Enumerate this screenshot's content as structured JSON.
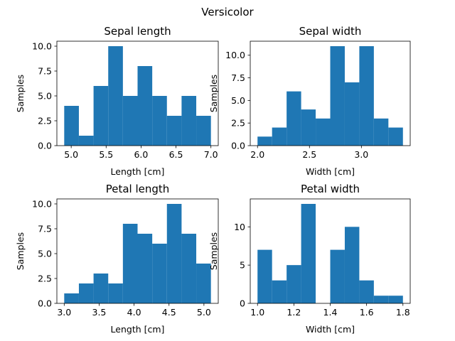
{
  "figure": {
    "suptitle": "Versicolor"
  },
  "colors": {
    "bar": "#1f77b4",
    "axes": "#000000",
    "background": "#ffffff"
  },
  "chart_data": [
    {
      "type": "bar",
      "title": "Sepal length",
      "xlabel": "Length [cm]",
      "ylabel": "Samples",
      "bin_edges": [
        4.9,
        5.11,
        5.32,
        5.53,
        5.74,
        5.95,
        6.16,
        6.37,
        6.58,
        6.79,
        7.0
      ],
      "values": [
        4,
        1,
        6,
        10,
        5,
        8,
        5,
        3,
        5,
        3
      ],
      "xlim": [
        4.795,
        7.105
      ],
      "ylim": [
        0,
        10.5
      ],
      "xticks": [
        5.0,
        5.5,
        6.0,
        6.5,
        7.0
      ],
      "xtick_labels": [
        "5.0",
        "5.5",
        "6.0",
        "6.5",
        "7.0"
      ],
      "yticks": [
        0,
        2.5,
        5,
        7.5,
        10
      ],
      "ytick_labels": [
        "0.0",
        "2.5",
        "5.0",
        "7.5",
        "10.0"
      ]
    },
    {
      "type": "bar",
      "title": "Sepal width",
      "xlabel": "Width [cm]",
      "ylabel": "Samples",
      "bin_edges": [
        2.0,
        2.14,
        2.28,
        2.42,
        2.56,
        2.7,
        2.84,
        2.98,
        3.12,
        3.26,
        3.4
      ],
      "values": [
        1,
        2,
        6,
        4,
        3,
        11,
        7,
        11,
        3,
        2
      ],
      "xlim": [
        1.93,
        3.47
      ],
      "ylim": [
        0,
        11.55
      ],
      "xticks": [
        2.0,
        2.5,
        3.0
      ],
      "xtick_labels": [
        "2.0",
        "2.5",
        "3.0"
      ],
      "yticks": [
        0,
        2.5,
        5,
        7.5,
        10
      ],
      "ytick_labels": [
        "0.0",
        "2.5",
        "5.0",
        "7.5",
        "10.0"
      ]
    },
    {
      "type": "bar",
      "title": "Petal length",
      "xlabel": "Length [cm]",
      "ylabel": "Samples",
      "bin_edges": [
        3.0,
        3.21,
        3.42,
        3.63,
        3.84,
        4.05,
        4.26,
        4.47,
        4.68,
        4.89,
        5.1
      ],
      "values": [
        1,
        2,
        3,
        2,
        8,
        7,
        6,
        10,
        7,
        4
      ],
      "xlim": [
        2.895,
        5.205
      ],
      "ylim": [
        0,
        10.5
      ],
      "xticks": [
        3.0,
        3.5,
        4.0,
        4.5,
        5.0
      ],
      "xtick_labels": [
        "3.0",
        "3.5",
        "4.0",
        "4.5",
        "5.0"
      ],
      "yticks": [
        0,
        2.5,
        5,
        7.5,
        10
      ],
      "ytick_labels": [
        "0.0",
        "2.5",
        "5.0",
        "7.5",
        "10.0"
      ]
    },
    {
      "type": "bar",
      "title": "Petal width",
      "xlabel": "Width [cm]",
      "ylabel": "Samples",
      "bin_edges": [
        1.0,
        1.08,
        1.16,
        1.24,
        1.32,
        1.4,
        1.48,
        1.56,
        1.64,
        1.72,
        1.8
      ],
      "values": [
        7,
        3,
        5,
        13,
        0,
        7,
        10,
        3,
        1,
        1
      ],
      "xlim": [
        0.96,
        1.84
      ],
      "ylim": [
        0,
        13.65
      ],
      "xticks": [
        1.0,
        1.2,
        1.4,
        1.6,
        1.8
      ],
      "xtick_labels": [
        "1.0",
        "1.2",
        "1.4",
        "1.6",
        "1.8"
      ],
      "yticks": [
        0,
        5,
        10
      ],
      "ytick_labels": [
        "0",
        "5",
        "10"
      ]
    }
  ]
}
